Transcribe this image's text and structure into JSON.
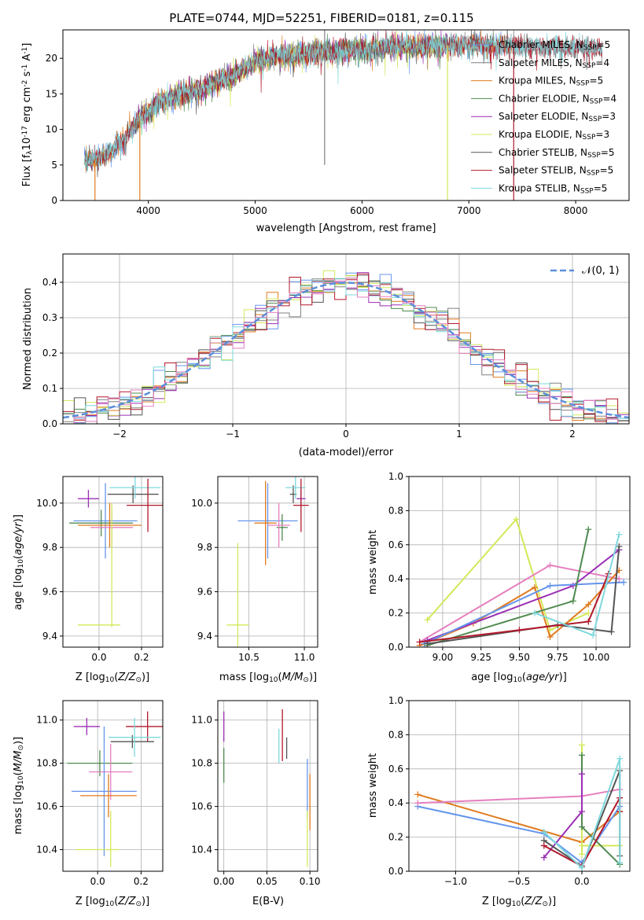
{
  "figure_title": "PLATE=0744, MJD=52251, FIBERID=0181, z=0.115",
  "colors": {
    "Chabrier MILES": "#6495ed",
    "Salpeter MILES": "#808080",
    "Kroupa MILES": "#e07b1e",
    "Chabrier ELODIE": "#4f8a4f",
    "Salpeter ELODIE": "#9b2fb5",
    "Kroupa ELODIE": "#d4e85a",
    "Chabrier STELIB": "#555555",
    "Salpeter STELIB": "#b2182b",
    "Kroupa STELIB": "#7fd8dc",
    "Pink": "#e67fbf",
    "Normal curve": "#5b8fd9"
  },
  "chart_data": [
    {
      "type": "line",
      "id": "spectrum",
      "xlabel": "wavelength [Angstrom, rest frame]",
      "ylabel": "Flux [f",
      "ylabel_sub": "λ",
      "ylabel_mid": "10",
      "ylabel_sup1": "-17",
      "ylabel_rest": " erg cm",
      "ylabel_sup2": "-2",
      "ylabel_rest2": " s",
      "ylabel_sup3": "-1",
      "ylabel_rest3": " A",
      "ylabel_sup4": "-1",
      "ylabel_end": "]",
      "xlim": [
        3200,
        8500
      ],
      "ylim": [
        0,
        24
      ],
      "xticks": [
        "4000",
        "5000",
        "6000",
        "7000",
        "8000"
      ],
      "xtick_values": [
        4000,
        5000,
        6000,
        7000,
        8000
      ],
      "yticks": [
        "0",
        "5",
        "10",
        "15",
        "20"
      ],
      "ytick_values": [
        0,
        5,
        10,
        15,
        20
      ],
      "x_range": [
        3400,
        8250
      ],
      "continuum_knots": [
        [
          3400,
          5.5
        ],
        [
          3600,
          6.3
        ],
        [
          3750,
          8.2
        ],
        [
          3900,
          11.3
        ],
        [
          4100,
          13.8
        ],
        [
          4300,
          15.0
        ],
        [
          4500,
          15.8
        ],
        [
          4800,
          17.6
        ],
        [
          5000,
          19.6
        ],
        [
          5200,
          20.3
        ],
        [
          5500,
          20.7
        ],
        [
          5800,
          21.1
        ],
        [
          6100,
          21.4
        ],
        [
          6400,
          21.7
        ],
        [
          6700,
          21.7
        ],
        [
          7000,
          21.8
        ],
        [
          7300,
          21.9
        ],
        [
          7600,
          21.6
        ],
        [
          8000,
          21.5
        ],
        [
          8250,
          21.5
        ]
      ],
      "series": [
        {
          "name": "Chabrier MILES",
          "legend": "Chabrier MILES, N",
          "nssp": "=5",
          "color": "#6495ed",
          "range": [
            3400,
            7350
          ]
        },
        {
          "name": "Salpeter MILES",
          "legend": "Salpeter MILES, N",
          "nssp": "=4",
          "color": "#808080",
          "range": [
            3400,
            8250
          ]
        },
        {
          "name": "Kroupa MILES",
          "legend": "Kroupa MILES, N",
          "nssp": "=5",
          "color": "#e07b1e",
          "range": [
            3400,
            7400
          ]
        },
        {
          "name": "Chabrier ELODIE",
          "legend": "Chabrier ELODIE, N",
          "nssp": "=4",
          "color": "#4f8a4f",
          "range": [
            3900,
            6800
          ]
        },
        {
          "name": "Salpeter ELODIE",
          "legend": "Salpeter ELODIE, N",
          "nssp": "=3",
          "color": "#9b2fb5",
          "range": [
            3900,
            6800
          ]
        },
        {
          "name": "Kroupa ELODIE",
          "legend": "Kroupa ELODIE, N",
          "nssp": "=3",
          "color": "#d4e85a",
          "range": [
            3900,
            6800
          ]
        },
        {
          "name": "Chabrier STELIB",
          "legend": "Chabrier STELIB, N",
          "nssp": "=5",
          "color": "#555555",
          "range": [
            3400,
            8250
          ]
        },
        {
          "name": "Salpeter STELIB",
          "legend": "Salpeter STELIB, N",
          "nssp": "=5",
          "color": "#b2182b",
          "range": [
            3400,
            8250
          ]
        },
        {
          "name": "Kroupa STELIB",
          "legend": "Kroupa STELIB, N",
          "nssp": "=5",
          "color": "#7fd8dc",
          "range": [
            3400,
            8250
          ]
        }
      ],
      "legend_sub": "SSP",
      "legend_position": "upper right",
      "spikes": [
        [
          3500,
          0,
          "#e07b1e"
        ],
        [
          3920,
          0,
          "#e07b1e"
        ],
        [
          5650,
          5,
          "#808080"
        ],
        [
          6800,
          0,
          "#d4e85a"
        ],
        [
          7420,
          0,
          "#b2182b"
        ],
        [
          5650,
          24,
          "#808080"
        ],
        [
          7360,
          24,
          "#808080"
        ]
      ]
    },
    {
      "type": "histogram",
      "id": "residuals",
      "xlabel": "(data-model)/error",
      "ylabel": "Normed distribution",
      "xlim": [
        -2.5,
        2.5
      ],
      "ylim": [
        0,
        0.48
      ],
      "xticks": [
        "−2",
        "−1",
        "0",
        "1",
        "2"
      ],
      "xtick_values": [
        -2,
        -1,
        0,
        1,
        2
      ],
      "yticks": [
        "0.0",
        "0.1",
        "0.2",
        "0.3",
        "0.4"
      ],
      "ytick_values": [
        0,
        0.1,
        0.2,
        0.3,
        0.4
      ],
      "grid": true,
      "bins": 50,
      "bin_width": 0.1,
      "series_colors": [
        "#6495ed",
        "#808080",
        "#e07b1e",
        "#4f8a4f",
        "#9b2fb5",
        "#d4e85a",
        "#555555",
        "#b2182b",
        "#7fd8dc",
        "#e67fbf"
      ],
      "legend": "𝒩(0, 1)",
      "legend_color": "#5b8fd9",
      "legend_position": "upper right"
    },
    {
      "type": "scatter",
      "id": "age-vs-Z",
      "xlabel": "Z [log",
      "xlabel_sub": "10",
      "xlabel_rest": "(Z/Z",
      "xlabel_sub2": "⊙",
      "xlabel_end": ")]",
      "ylabel": "age  [log",
      "ylabel_sub": "10",
      "ylabel_rest": "(age/yr)]",
      "xlim": [
        -0.17,
        0.3
      ],
      "ylim": [
        9.35,
        10.12
      ],
      "xticks": [
        "0.0",
        "0.2"
      ],
      "xtick_values": [
        0.0,
        0.2
      ],
      "yticks": [
        "9.4",
        "9.6",
        "9.8",
        "10.0"
      ],
      "ytick_values": [
        9.4,
        9.6,
        9.8,
        10.0
      ],
      "grid": true,
      "points": [
        {
          "color": "#9b2fb5",
          "x": -0.05,
          "y": 10.02,
          "xe": 0.05,
          "ye": 0.04
        },
        {
          "color": "#555555",
          "x": 0.16,
          "y": 10.04,
          "xe": 0.12,
          "ye": 0.04
        },
        {
          "color": "#7fd8dc",
          "x": 0.17,
          "y": 10.07,
          "xe": 0.12,
          "ye": 0.05
        },
        {
          "color": "#b2182b",
          "x": 0.23,
          "y": 9.99,
          "xe": 0.1,
          "ye": 0.12
        },
        {
          "color": "#6495ed",
          "x": 0.03,
          "y": 9.92,
          "xe": 0.15,
          "ye": 0.17
        },
        {
          "color": "#4f8a4f",
          "x": 0.01,
          "y": 9.91,
          "xe": 0.15,
          "ye": 0.06
        },
        {
          "color": "#e07b1e",
          "x": 0.05,
          "y": 9.9,
          "xe": 0.15,
          "ye": 0.1
        },
        {
          "color": "#e67fbf",
          "x": 0.06,
          "y": 9.89,
          "xe": 0.1,
          "ye": 0.09
        },
        {
          "color": "#d4e85a",
          "x": 0.0,
          "y": 9.45,
          "xe": 0.1,
          "ye": 0.0
        },
        {
          "color": "#d4e85a",
          "x": 0.06,
          "y": 9.72,
          "xe": 0.0,
          "ye": 0.28
        }
      ]
    },
    {
      "type": "scatter",
      "id": "age-vs-mass",
      "xlabel": "mass [log",
      "xlabel_sub": "10",
      "xlabel_rest": "(M/M",
      "xlabel_sub2": "⊙",
      "xlabel_end": ")]",
      "xlim": [
        10.22,
        11.12
      ],
      "ylim": [
        9.35,
        10.12
      ],
      "xticks": [
        "10.5",
        "11.0"
      ],
      "xtick_values": [
        10.5,
        11.0
      ],
      "yticks": [
        "9.4",
        "9.6",
        "9.8",
        "10.0"
      ],
      "ytick_values": [
        9.4,
        9.6,
        9.8,
        10.0
      ],
      "grid": true,
      "points": [
        {
          "color": "#9b2fb5",
          "x": 10.97,
          "y": 10.02,
          "xe": 0.04,
          "ye": 0.04
        },
        {
          "color": "#555555",
          "x": 10.9,
          "y": 10.04,
          "xe": 0.03,
          "ye": 0.04
        },
        {
          "color": "#7fd8dc",
          "x": 10.92,
          "y": 10.07,
          "xe": 0.09,
          "ye": 0.05
        },
        {
          "color": "#b2182b",
          "x": 10.97,
          "y": 9.99,
          "xe": 0.07,
          "ye": 0.12
        },
        {
          "color": "#6495ed",
          "x": 10.67,
          "y": 9.92,
          "xe": 0.27,
          "ye": 0.17
        },
        {
          "color": "#4f8a4f",
          "x": 10.8,
          "y": 9.89,
          "xe": 0.05,
          "ye": 0.06
        },
        {
          "color": "#e07b1e",
          "x": 10.65,
          "y": 9.91,
          "xe": 0.1,
          "ye": 0.19
        },
        {
          "color": "#e67fbf",
          "x": 10.77,
          "y": 9.9,
          "xe": 0.1,
          "ye": 0.1
        },
        {
          "color": "#d4e85a",
          "x": 10.4,
          "y": 9.45,
          "xe": 0.1,
          "ye": 0.37
        }
      ]
    },
    {
      "type": "line",
      "id": "massweight-vs-age",
      "xlabel": "age  [log",
      "xlabel_sub": "10",
      "xlabel_rest": "(age/yr)]",
      "ylabel": "mass weight",
      "xlim": [
        8.78,
        10.22
      ],
      "ylim": [
        0,
        1.0
      ],
      "xticks": [
        "9.00",
        "9.25",
        "9.50",
        "9.75",
        "10.00"
      ],
      "xtick_values": [
        9.0,
        9.25,
        9.5,
        9.75,
        10.0
      ],
      "yticks": [
        "0.0",
        "0.2",
        "0.4",
        "0.6",
        "0.8",
        "1.0"
      ],
      "ytick_values": [
        0,
        0.2,
        0.4,
        0.6,
        0.8,
        1.0
      ],
      "grid": true,
      "series": [
        {
          "color": "#d4e85a",
          "x": [
            8.9,
            9.48,
            9.7,
            9.95
          ],
          "y": [
            0.16,
            0.75,
            0.1,
            0.2
          ]
        },
        {
          "color": "#e67fbf",
          "x": [
            8.85,
            9.7,
            10.15
          ],
          "y": [
            0.03,
            0.48,
            0.4
          ]
        },
        {
          "color": "#e07b1e",
          "x": [
            8.85,
            9.2,
            9.6,
            9.7,
            9.95,
            10.15
          ],
          "y": [
            0.01,
            0.14,
            0.35,
            0.06,
            0.25,
            0.45
          ]
        },
        {
          "color": "#9b2fb5",
          "x": [
            8.9,
            9.85,
            10.15
          ],
          "y": [
            0.04,
            0.36,
            0.57
          ]
        },
        {
          "color": "#6495ed",
          "x": [
            8.88,
            9.7,
            10.18
          ],
          "y": [
            0.02,
            0.36,
            0.38
          ]
        },
        {
          "color": "#4f8a4f",
          "x": [
            8.9,
            9.85,
            9.95
          ],
          "y": [
            0.01,
            0.27,
            0.69
          ]
        },
        {
          "color": "#555555",
          "x": [
            8.9,
            9.75,
            10.1,
            10.15
          ],
          "y": [
            0.02,
            0.13,
            0.09,
            0.59
          ]
        },
        {
          "color": "#b2182b",
          "x": [
            8.85,
            9.5,
            9.95,
            10.08
          ],
          "y": [
            0.03,
            0.1,
            0.15,
            0.43
          ]
        },
        {
          "color": "#7fd8dc",
          "x": [
            9.6,
            9.98,
            10.15
          ],
          "y": [
            0.2,
            0.07,
            0.66
          ]
        }
      ]
    },
    {
      "type": "scatter",
      "id": "mass-vs-Z",
      "xlabel": "Z [log",
      "xlabel_sub": "10",
      "xlabel_rest": "(Z/Z",
      "xlabel_sub2": "⊙",
      "xlabel_end": ")]",
      "ylabel": "mass [log",
      "ylabel_sub": "10",
      "ylabel_rest": "(M/M",
      "ylabel_sub2": "⊙",
      "ylabel_end": ")]",
      "xlim": [
        -0.16,
        0.3
      ],
      "ylim": [
        10.3,
        11.09
      ],
      "xticks": [
        "0.0",
        "0.2"
      ],
      "xtick_values": [
        0.0,
        0.2
      ],
      "yticks": [
        "10.4",
        "10.6",
        "10.8",
        "11.0"
      ],
      "ytick_values": [
        10.4,
        10.6,
        10.8,
        11.0
      ],
      "grid": true,
      "points": [
        {
          "color": "#9b2fb5",
          "x": -0.05,
          "y": 10.97,
          "xe": 0.06,
          "ye": 0.04
        },
        {
          "color": "#b2182b",
          "x": 0.23,
          "y": 10.97,
          "xe": 0.1,
          "ye": 0.07
        },
        {
          "color": "#555555",
          "x": 0.16,
          "y": 10.9,
          "xe": 0.1,
          "ye": 0.03
        },
        {
          "color": "#7fd8dc",
          "x": 0.17,
          "y": 10.92,
          "xe": 0.12,
          "ye": 0.09
        },
        {
          "color": "#4f8a4f",
          "x": 0.01,
          "y": 10.8,
          "xe": 0.15,
          "ye": 0.06
        },
        {
          "color": "#e67fbf",
          "x": 0.06,
          "y": 10.76,
          "xe": 0.1,
          "ye": 0.13
        },
        {
          "color": "#6495ed",
          "x": 0.03,
          "y": 10.67,
          "xe": 0.15,
          "ye": 0.3
        },
        {
          "color": "#e07b1e",
          "x": 0.05,
          "y": 10.65,
          "xe": 0.13,
          "ye": 0.1
        },
        {
          "color": "#d4e85a",
          "x": 0.0,
          "y": 10.4,
          "xe": 0.1,
          "ye": 0.0
        },
        {
          "color": "#d4e85a",
          "x": 0.06,
          "y": 10.45,
          "xe": 0.0,
          "ye": 0.13
        }
      ]
    },
    {
      "type": "scatter",
      "id": "mass-vs-EBV",
      "xlabel": "E(B-V)",
      "xlim": [
        -0.007,
        0.109
      ],
      "ylim": [
        10.3,
        11.09
      ],
      "xticks": [
        "0.00",
        "0.05",
        "0.10"
      ],
      "xtick_values": [
        0.0,
        0.05,
        0.1
      ],
      "yticks": [
        "10.4",
        "10.6",
        "10.8",
        "11.0"
      ],
      "ytick_values": [
        10.4,
        10.6,
        10.8,
        11.0
      ],
      "grid": true,
      "points": [
        {
          "color": "#9b2fb5",
          "x": 0.0,
          "y": 10.97,
          "xe": 0,
          "ye": 0.07
        },
        {
          "color": "#4f8a4f",
          "x": 0.0,
          "y": 10.79,
          "xe": 0,
          "ye": 0.08
        },
        {
          "color": "#b2182b",
          "x": 0.068,
          "y": 10.93,
          "xe": 0,
          "ye": 0.12
        },
        {
          "color": "#7fd8dc",
          "x": 0.064,
          "y": 10.88,
          "xe": 0,
          "ye": 0.08
        },
        {
          "color": "#555555",
          "x": 0.073,
          "y": 10.87,
          "xe": 0,
          "ye": 0.05
        },
        {
          "color": "#6495ed",
          "x": 0.097,
          "y": 10.68,
          "xe": 0,
          "ye": 0.14
        },
        {
          "color": "#e07b1e",
          "x": 0.1,
          "y": 10.62,
          "xe": 0,
          "ye": 0.13
        },
        {
          "color": "#d4e85a",
          "x": 0.097,
          "y": 10.45,
          "xe": 0,
          "ye": 0.13
        }
      ]
    },
    {
      "type": "line",
      "id": "massweight-vs-Z",
      "xlabel": "Z [log",
      "xlabel_sub": "10",
      "xlabel_rest": "(Z/Z",
      "xlabel_sub2": "⊙",
      "xlabel_end": ")]",
      "ylabel": "mass weight",
      "xlim": [
        -1.37,
        0.38
      ],
      "ylim": [
        0,
        1.0
      ],
      "xticks": [
        "−1.0",
        "−0.5",
        "0.0"
      ],
      "xtick_values": [
        -1.0,
        -0.5,
        0.0
      ],
      "yticks": [
        "0.0",
        "0.2",
        "0.4",
        "0.6",
        "0.8",
        "1.0"
      ],
      "ytick_values": [
        0,
        0.2,
        0.4,
        0.6,
        0.8,
        1.0
      ],
      "grid": true,
      "series": [
        {
          "color": "#e07b1e",
          "x": [
            -1.3,
            0.0,
            0.3
          ],
          "y": [
            0.45,
            0.17,
            0.35
          ]
        },
        {
          "color": "#6495ed",
          "x": [
            -1.3,
            -0.3,
            0.0,
            0.3
          ],
          "y": [
            0.38,
            0.22,
            0.05,
            0.38
          ]
        },
        {
          "color": "#e67fbf",
          "x": [
            -1.3,
            0.0,
            0.3
          ],
          "y": [
            0.4,
            0.44,
            0.48
          ]
        },
        {
          "color": "#d4e85a",
          "x": [
            0.0,
            0.0,
            0.0,
            0.3
          ],
          "y": [
            0.74,
            0.1,
            0.15,
            0.15
          ]
        },
        {
          "color": "#4f8a4f",
          "x": [
            0.0,
            0.0,
            0.3
          ],
          "y": [
            0.68,
            0.26,
            0.04
          ]
        },
        {
          "color": "#9b2fb5",
          "x": [
            -0.3,
            0.0,
            0.0
          ],
          "y": [
            0.08,
            0.35,
            0.57
          ]
        },
        {
          "color": "#555555",
          "x": [
            -0.3,
            0.0,
            0.3,
            0.3
          ],
          "y": [
            0.18,
            0.03,
            0.59,
            0.09
          ]
        },
        {
          "color": "#b2182b",
          "x": [
            -0.3,
            0.0,
            0.3,
            0.3
          ],
          "y": [
            0.15,
            0.03,
            0.43,
            0.35
          ]
        },
        {
          "color": "#7fd8dc",
          "x": [
            -0.3,
            0.0,
            0.3,
            0.3
          ],
          "y": [
            0.23,
            0.02,
            0.66,
            0.05
          ]
        }
      ]
    }
  ]
}
